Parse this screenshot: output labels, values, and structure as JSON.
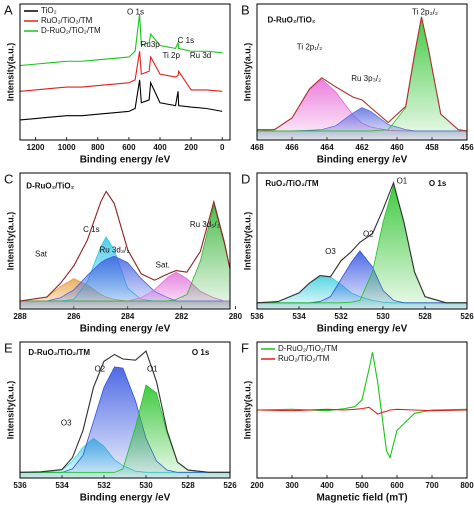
{
  "chart_data": [
    {
      "type": "line",
      "panel_label": "A",
      "xlabel": "Binding energy /eV",
      "ylabel": "Intensity(a.u.)",
      "xlim": [
        1300,
        -50
      ],
      "xticks": [
        1200,
        1000,
        800,
        600,
        400,
        200,
        0
      ],
      "ylim": [
        10,
        105
      ],
      "annotations": [
        "O 1s",
        "Ru3p",
        "Ti 2p",
        "C 1s",
        "Ru 3d"
      ],
      "x": [
        1300,
        1200,
        1100,
        1000,
        900,
        800,
        700,
        600,
        560,
        531,
        520,
        470,
        460,
        400,
        300,
        284,
        280,
        200,
        100,
        0
      ],
      "series": [
        {
          "name": "TiO₂",
          "color": "#000000",
          "values": [
            24,
            25,
            26,
            27,
            27,
            28,
            29,
            30,
            32,
            52,
            36,
            38,
            50,
            36,
            34,
            44,
            34,
            33,
            32,
            30
          ]
        },
        {
          "name": "RuO₂/TiO₂/TM",
          "color": "#e0201b",
          "values": [
            44,
            45,
            46,
            47,
            47,
            48,
            49,
            50,
            52,
            72,
            56,
            58,
            68,
            56,
            54,
            55,
            58,
            45,
            45,
            44
          ]
        },
        {
          "name": "D-RuO₂/TiO₂/TM",
          "color": "#19c519",
          "values": [
            62,
            63,
            64,
            65,
            65,
            66,
            67,
            68,
            72,
            98,
            76,
            78,
            84,
            76,
            74,
            78,
            74,
            72,
            72,
            71
          ]
        }
      ]
    },
    {
      "type": "fit",
      "panel_label": "B",
      "xlabel": "Binding energy /eV",
      "ylabel": "Intensity(a.u.)",
      "xlim": [
        468,
        456
      ],
      "xticks": [
        468,
        466,
        464,
        462,
        460,
        458,
        456
      ],
      "ylim": [
        5,
        110
      ],
      "annotations": [
        "D-RuO₂/TiO₂",
        "Ti 2p₁/₂",
        "Ru 3p₃/₂",
        "Ti 2p₃/₂"
      ],
      "x": [
        468,
        467,
        466,
        465,
        464.3,
        463.5,
        462.5,
        462,
        461.5,
        460.5,
        459.5,
        459,
        458.6,
        458.2,
        457.5,
        456.5,
        456
      ],
      "series": [
        {
          "color": "#e86ad8",
          "fill": true,
          "values": [
            12,
            13,
            22,
            44,
            52,
            42,
            24,
            18,
            15,
            12.5,
            12,
            12,
            12,
            12,
            12,
            12,
            12
          ]
        },
        {
          "color": "#5b6ee0",
          "fill": true,
          "values": [
            12,
            12,
            12,
            12.5,
            13,
            16,
            26,
            30,
            27,
            17,
            13,
            12,
            12,
            12,
            12,
            12,
            12
          ]
        },
        {
          "color": "#22c022",
          "fill": true,
          "values": [
            12,
            12,
            12,
            12,
            12,
            12,
            12,
            12,
            12,
            13,
            30,
            70,
            100,
            75,
            25,
            13,
            12
          ]
        },
        {
          "color": "#b03030",
          "fill": false,
          "values": [
            13,
            13,
            22,
            44.5,
            53,
            46,
            38,
            36,
            30,
            18.5,
            31,
            71,
            100,
            75,
            25,
            13,
            12
          ]
        }
      ]
    },
    {
      "type": "fit",
      "panel_label": "C",
      "xlabel": "Binding energy /eV",
      "ylabel": "Intensity(a.u.)",
      "xlim": [
        288,
        280.2
      ],
      "xticks": [
        288,
        286,
        284,
        282,
        280
      ],
      "ylim": [
        5,
        90
      ],
      "annotations": [
        "D-RuO₂/TiO₂",
        "Sat",
        "C 1s",
        "Ru 3d₃/₂",
        "Sat.",
        "Ru 3d₅/₂"
      ],
      "x": [
        288,
        287,
        286.5,
        286,
        285.5,
        285,
        284.8,
        284.5,
        284,
        283.5,
        283,
        282.5,
        282.2,
        281.8,
        281.3,
        280.8,
        280.4,
        280.2
      ],
      "series": [
        {
          "color": "#e8a040",
          "fill": true,
          "values": [
            10,
            12.5,
            19,
            24,
            20,
            14,
            12.5,
            11,
            10,
            10,
            10,
            10,
            10,
            10,
            10,
            10,
            10,
            10
          ]
        },
        {
          "color": "#30c8e8",
          "fill": true,
          "values": [
            10,
            10,
            10,
            11,
            22,
            44,
            50,
            42,
            18,
            11,
            10,
            10,
            10,
            10,
            10,
            10,
            10,
            10
          ]
        },
        {
          "color": "#4060e0",
          "fill": true,
          "values": [
            10,
            10,
            12,
            17,
            26,
            34,
            36,
            38,
            34,
            24,
            16,
            12,
            10,
            10,
            10,
            10,
            10,
            10
          ]
        },
        {
          "color": "#e070d8",
          "fill": true,
          "values": [
            10,
            10,
            10,
            10,
            10,
            10,
            10,
            10,
            10,
            12,
            17,
            25,
            28,
            24,
            16,
            12,
            10,
            10
          ]
        },
        {
          "color": "#30b030",
          "fill": true,
          "values": [
            10,
            10,
            10,
            10,
            10,
            10,
            10,
            10,
            10,
            10,
            10,
            10,
            11,
            14,
            35,
            70,
            45,
            30
          ]
        },
        {
          "color": "#8b2020",
          "fill": false,
          "values": [
            10,
            12.5,
            21,
            32,
            48,
            72,
            78.5,
            71,
            42,
            27,
            23,
            27,
            29,
            28,
            41,
            72,
            46,
            30
          ]
        }
      ]
    },
    {
      "type": "fit",
      "panel_label": "D",
      "xlabel": "Binding energy /eV",
      "ylabel": "Intensity(a.u.)",
      "xlim": [
        536,
        526
      ],
      "xticks": [
        536,
        534,
        532,
        530,
        528,
        526
      ],
      "ylim": [
        0,
        110
      ],
      "annotations": [
        "RuO₂/TiO₂/TM",
        "O 1s",
        "O1",
        "O2",
        "O3"
      ],
      "x": [
        536,
        535,
        534,
        533.5,
        533,
        532.5,
        532,
        531.5,
        531.1,
        530.5,
        530,
        529.5,
        529,
        528.5,
        528,
        527,
        526
      ],
      "series": [
        {
          "color": "#40d0e0",
          "fill": true,
          "values": [
            5,
            6,
            13,
            21,
            26,
            26,
            20,
            13,
            10,
            7,
            5.5,
            5,
            5,
            5,
            5,
            5,
            5
          ]
        },
        {
          "color": "#3050e0",
          "fill": true,
          "values": [
            5,
            5,
            5,
            5,
            6,
            10,
            24,
            38,
            47,
            34,
            15,
            7,
            5,
            5,
            5,
            5,
            5
          ]
        },
        {
          "color": "#20c020",
          "fill": true,
          "values": [
            5,
            5,
            5,
            5,
            5,
            5,
            5,
            5.5,
            7,
            30,
            70,
            100,
            70,
            30,
            10,
            5,
            5
          ]
        },
        {
          "color": "#303030",
          "fill": false,
          "values": [
            5,
            6,
            13,
            21,
            27,
            26,
            39,
            46.5,
            54,
            61,
            80.5,
            102,
            70,
            30,
            10,
            5,
            5
          ]
        }
      ]
    },
    {
      "type": "fit",
      "panel_label": "E",
      "xlabel": "Binding energy /eV",
      "ylabel": "Intensity(a.u.)",
      "xlim": [
        536,
        526
      ],
      "xticks": [
        536,
        534,
        532,
        530,
        528,
        526
      ],
      "ylim": [
        0,
        120
      ],
      "annotations": [
        "D-RuO₂/TiO₂/TM",
        "O 1s",
        "O1",
        "O2",
        "O3"
      ],
      "x": [
        536,
        535,
        534,
        533.5,
        533,
        532.5,
        532,
        531.5,
        531.1,
        530.5,
        530,
        529.5,
        529,
        528.5,
        528,
        527,
        526
      ],
      "series": [
        {
          "color": "#40d0e0",
          "fill": true,
          "values": [
            5,
            5,
            7,
            15,
            27,
            35,
            28,
            16,
            11,
            6,
            5,
            5,
            5,
            5,
            5,
            5,
            5
          ]
        },
        {
          "color": "#3050e0",
          "fill": true,
          "values": [
            5,
            5,
            5,
            8,
            20,
            50,
            80,
            98,
            97,
            68,
            35,
            15,
            7,
            5,
            5,
            5,
            5
          ]
        },
        {
          "color": "#20c020",
          "fill": true,
          "values": [
            5,
            5,
            5,
            5,
            5,
            5,
            5,
            5,
            8,
            45,
            82,
            75,
            40,
            14,
            7,
            5,
            5
          ]
        },
        {
          "color": "#303030",
          "fill": false,
          "values": [
            5,
            5.5,
            7.5,
            18,
            42,
            80,
            103,
            109,
            105,
            104,
            112,
            85,
            42,
            14,
            7,
            5,
            5
          ]
        }
      ]
    },
    {
      "type": "line",
      "panel_label": "F",
      "xlabel": "Magnetic field (mT)",
      "ylabel": "Intensity(a.u.)",
      "xlim": [
        200,
        800
      ],
      "xticks": [
        200,
        300,
        400,
        500,
        600,
        700,
        800
      ],
      "ylim": [
        -100,
        100
      ],
      "annotations": [],
      "x": [
        200,
        300,
        400,
        450,
        480,
        500,
        520,
        530,
        545,
        560,
        570,
        580,
        600,
        650,
        700,
        800
      ],
      "series": [
        {
          "name": "D-RuO₂/TiO₂/TM",
          "color": "#19c519",
          "values": [
            0,
            1,
            -1,
            2,
            5,
            15,
            60,
            85,
            40,
            -20,
            -60,
            -70,
            -30,
            -5,
            0,
            1
          ]
        },
        {
          "name": "RuO₂/TiO₂/TM",
          "color": "#e0201b",
          "values": [
            0,
            -1,
            1,
            0,
            1,
            2,
            4,
            0,
            -6,
            -3,
            -2,
            0,
            1,
            0,
            -1,
            0
          ]
        }
      ]
    }
  ]
}
